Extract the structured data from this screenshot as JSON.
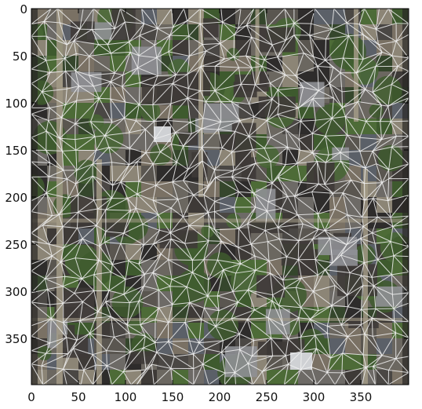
{
  "chart_data": {
    "type": "image-with-mesh",
    "title": "",
    "xlabel": "",
    "ylabel": "",
    "xlim": [
      0,
      400
    ],
    "ylim": [
      400,
      0
    ],
    "x_ticks": [
      0,
      50,
      100,
      150,
      200,
      250,
      300,
      350
    ],
    "y_ticks": [
      0,
      50,
      100,
      150,
      200,
      250,
      300,
      350
    ],
    "x_tick_labels": [
      "0",
      "50",
      "100",
      "150",
      "200",
      "250",
      "300",
      "350"
    ],
    "y_tick_labels": [
      "0",
      "50",
      "100",
      "150",
      "200",
      "250",
      "300",
      "350"
    ],
    "background": "aerial image of a neighborhood (rooftops, trees, roads)",
    "overlay": "white triangular mesh connecting points spread over the whole image",
    "grid": false
  },
  "colors": {
    "mesh": "#f2f2f2",
    "axis": "#000000",
    "road": "#a29a86",
    "trees": "#3e5a2e",
    "roof_dark": "#3e3a37",
    "roof_light": "#cfd1d4"
  }
}
